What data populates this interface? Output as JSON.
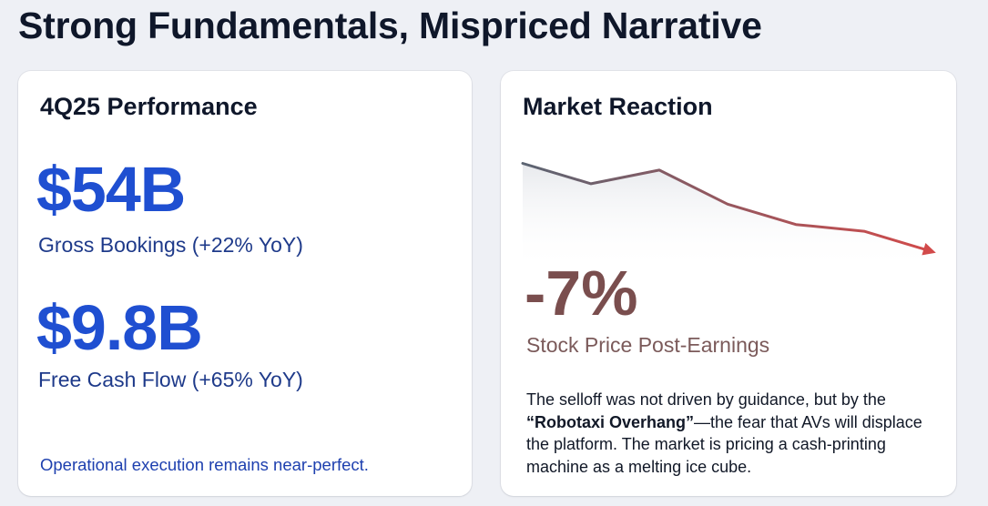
{
  "title": "Strong Fundamentals, Mispriced Narrative",
  "left_card": {
    "title": "4Q25 Performance",
    "metrics": [
      {
        "value": "$54B",
        "label": "Gross Bookings (+22% YoY)"
      },
      {
        "value": "$9.8B",
        "label": "Free Cash Flow (+65% YoY)"
      }
    ],
    "footnote": "Operational execution remains near-perfect."
  },
  "right_card": {
    "title": "Market Reaction",
    "change_value": "-7%",
    "change_label": "Stock Price Post-Earnings",
    "description": {
      "part1": "The selloff was not driven by guidance, but by the ",
      "emphasis": "“Robotaxi Overhang”",
      "part2": "—the fear that AVs will displace the platform. The market is pricing a cash-printing machine as a melting ice cube."
    }
  },
  "chart_data": {
    "type": "line",
    "x": [
      0,
      1,
      2,
      3,
      4,
      5,
      6
    ],
    "series": [
      {
        "values": [
          100,
          97,
          99,
          94,
          91,
          90,
          87
        ]
      }
    ],
    "ylim": [
      86,
      101
    ],
    "line_color_start": "#5b6472",
    "line_color_end": "#d24a4a",
    "arrow_at_end": true
  },
  "colors": {
    "accent_blue": "#1f4fd1",
    "label_blue": "#1e3a8a",
    "negative_brown": "#7a4e4e",
    "background": "#eef0f5"
  }
}
